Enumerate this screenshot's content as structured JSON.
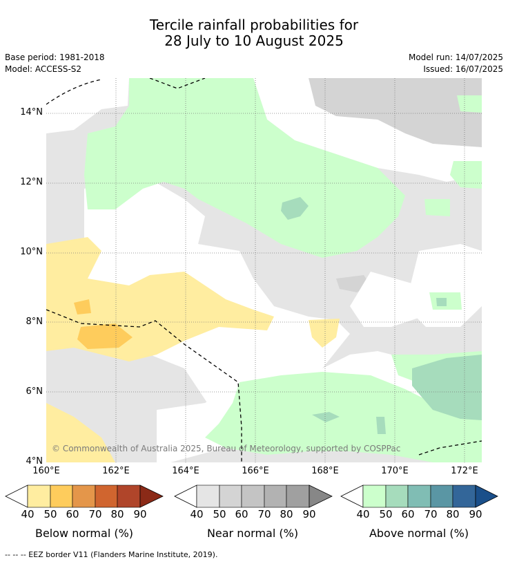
{
  "title_line1": "Tercile rainfall probabilities for",
  "title_line2": "28 July to 10 August 2025",
  "base_period": "Base period: 1981-2018",
  "model": "Model: ACCESS-S2",
  "model_run": "Model run: 14/07/2025",
  "issued": "Issued: 16/07/2025",
  "copyright": "© Commonwealth of Australia 2025, Bureau of Meteorology, supported by COSPPac",
  "lat_ticks": [
    "14°N",
    "12°N",
    "10°N",
    "8°N",
    "6°N",
    "4°N"
  ],
  "lon_ticks": [
    "160°E",
    "162°E",
    "164°E",
    "166°E",
    "168°E",
    "170°E",
    "172°E"
  ],
  "legends": [
    {
      "label": "Below normal (%)",
      "ticks": [
        "40",
        "50",
        "60",
        "70",
        "80",
        "90"
      ],
      "colors": [
        "#ffeda0",
        "#fecc5c",
        "#e4964a",
        "#d0652f",
        "#b0452a",
        "#8b2a17"
      ]
    },
    {
      "label": "Near normal (%)",
      "ticks": [
        "40",
        "50",
        "60",
        "70",
        "80",
        "90"
      ],
      "colors": [
        "#e5e5e5",
        "#d4d4d4",
        "#c4c4c4",
        "#b2b2b2",
        "#a0a0a0",
        "#878787"
      ]
    },
    {
      "label": "Above normal (%)",
      "ticks": [
        "40",
        "50",
        "60",
        "70",
        "80",
        "90"
      ],
      "colors": [
        "#ccffcc",
        "#a6dcbc",
        "#80bdb4",
        "#5a96a4",
        "#336699",
        "#1a4f8a"
      ]
    }
  ],
  "footnote": "-- -- -- EEZ border V11 (Flanders Marine Institute, 2019).",
  "colors": {
    "near_40": "#e5e5e5",
    "near_50": "#d4d4d4",
    "above_40": "#ccffcc",
    "above_50": "#a6dcbc",
    "above_60": "#80bdb4",
    "below_40": "#ffeda0",
    "below_50": "#fecc5c",
    "copyright_text": "#7a7a7a"
  }
}
